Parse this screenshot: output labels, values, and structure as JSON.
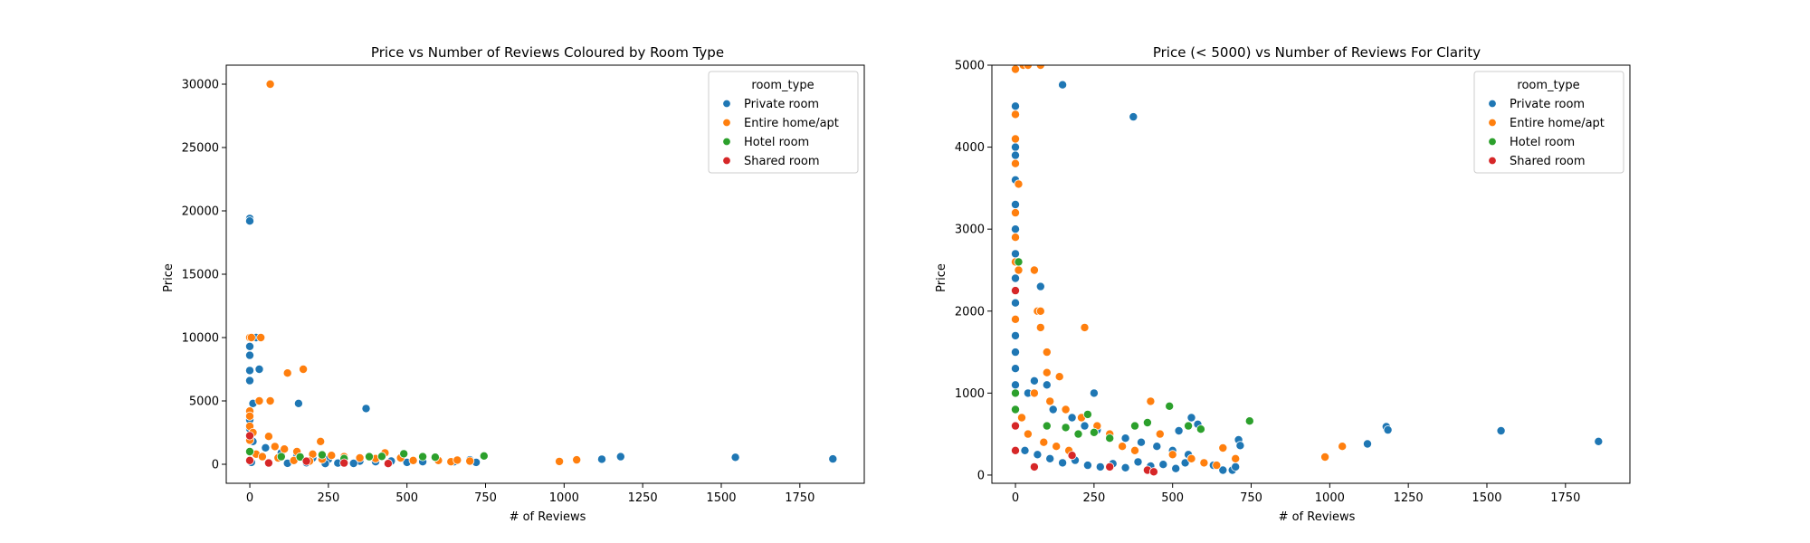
{
  "chart_data": [
    {
      "type": "scatter",
      "title": "Price vs Number of Reviews Coloured by Room Type",
      "xlabel": "# of Reviews",
      "ylabel": "Price",
      "xlim": [
        -75,
        1955
      ],
      "ylim": [
        -1500,
        31500
      ],
      "xticks": [
        0,
        250,
        500,
        750,
        1000,
        1250,
        1500,
        1750
      ],
      "yticks": [
        0,
        5000,
        10000,
        15000,
        20000,
        25000,
        30000
      ],
      "legend": {
        "title": "room_type",
        "position": "top-right"
      },
      "series": [
        {
          "name": "Private room",
          "color": "#1f77b4",
          "points": [
            [
              0,
              19400
            ],
            [
              0,
              19200
            ],
            [
              0,
              10000
            ],
            [
              20,
              10000
            ],
            [
              0,
              9300
            ],
            [
              0,
              8600
            ],
            [
              0,
              7400
            ],
            [
              30,
              7500
            ],
            [
              0,
              6600
            ],
            [
              10,
              4800
            ],
            [
              155,
              4800
            ],
            [
              370,
              4400
            ],
            [
              0,
              3500
            ],
            [
              0,
              2800
            ],
            [
              0,
              2000
            ],
            [
              10,
              1800
            ],
            [
              50,
              1300
            ],
            [
              100,
              900
            ],
            [
              150,
              700
            ],
            [
              200,
              500
            ],
            [
              250,
              400
            ],
            [
              300,
              300
            ],
            [
              350,
              250
            ],
            [
              400,
              200
            ],
            [
              450,
              250
            ],
            [
              500,
              150
            ],
            [
              550,
              200
            ],
            [
              600,
              300
            ],
            [
              650,
              200
            ],
            [
              700,
              350
            ],
            [
              720,
              150
            ],
            [
              1120,
              400
            ],
            [
              1180,
              600
            ],
            [
              1545,
              550
            ],
            [
              1855,
              420
            ],
            [
              5,
              150
            ],
            [
              60,
              100
            ],
            [
              120,
              80
            ],
            [
              180,
              120
            ],
            [
              240,
              60
            ],
            [
              280,
              90
            ],
            [
              330,
              70
            ]
          ]
        },
        {
          "name": "Entire home/apt",
          "color": "#ff7f0e",
          "points": [
            [
              65,
              30000
            ],
            [
              0,
              10000
            ],
            [
              5,
              10000
            ],
            [
              35,
              10000
            ],
            [
              120,
              7200
            ],
            [
              170,
              7500
            ],
            [
              30,
              5000
            ],
            [
              65,
              5000
            ],
            [
              0,
              4200
            ],
            [
              0,
              3800
            ],
            [
              0,
              3000
            ],
            [
              10,
              2500
            ],
            [
              60,
              2200
            ],
            [
              0,
              1900
            ],
            [
              225,
              1800
            ],
            [
              80,
              1400
            ],
            [
              110,
              1200
            ],
            [
              150,
              1000
            ],
            [
              200,
              800
            ],
            [
              260,
              700
            ],
            [
              300,
              600
            ],
            [
              350,
              500
            ],
            [
              400,
              450
            ],
            [
              430,
              900
            ],
            [
              480,
              500
            ],
            [
              520,
              300
            ],
            [
              600,
              300
            ],
            [
              640,
              200
            ],
            [
              660,
              330
            ],
            [
              700,
              250
            ],
            [
              985,
              220
            ],
            [
              1040,
              350
            ],
            [
              20,
              800
            ],
            [
              40,
              600
            ],
            [
              90,
              500
            ],
            [
              140,
              300
            ],
            [
              190,
              250
            ],
            [
              230,
              400
            ]
          ]
        },
        {
          "name": "Hotel room",
          "color": "#2ca02c",
          "points": [
            [
              0,
              1000
            ],
            [
              230,
              740
            ],
            [
              300,
              450
            ],
            [
              380,
              600
            ],
            [
              420,
              620
            ],
            [
              490,
              830
            ],
            [
              550,
              600
            ],
            [
              590,
              560
            ],
            [
              745,
              660
            ],
            [
              100,
              600
            ],
            [
              160,
              580
            ]
          ]
        },
        {
          "name": "Shared room",
          "color": "#d62728",
          "points": [
            [
              0,
              2250
            ],
            [
              0,
              300
            ],
            [
              60,
              100
            ],
            [
              180,
              240
            ],
            [
              300,
              100
            ],
            [
              440,
              60
            ]
          ]
        }
      ]
    },
    {
      "type": "scatter",
      "title": "Price (< 5000) vs Number of Reviews For Clarity",
      "xlabel": "# of Reviews",
      "ylabel": "Price",
      "xlim": [
        -75,
        1955
      ],
      "ylim": [
        -100,
        5000
      ],
      "xticks": [
        0,
        250,
        500,
        750,
        1000,
        1250,
        1500,
        1750
      ],
      "yticks": [
        0,
        1000,
        2000,
        3000,
        4000,
        5000
      ],
      "legend": {
        "title": "room_type",
        "position": "top-right"
      },
      "series": [
        {
          "name": "Private room",
          "color": "#1f77b4",
          "points": [
            [
              0,
              4500
            ],
            [
              150,
              4760
            ],
            [
              375,
              4370
            ],
            [
              0,
              4000
            ],
            [
              0,
              3900
            ],
            [
              0,
              3600
            ],
            [
              0,
              3300
            ],
            [
              0,
              3000
            ],
            [
              0,
              2700
            ],
            [
              0,
              2400
            ],
            [
              80,
              2300
            ],
            [
              0,
              2100
            ],
            [
              0,
              1900
            ],
            [
              0,
              1700
            ],
            [
              0,
              1500
            ],
            [
              0,
              1300
            ],
            [
              0,
              1100
            ],
            [
              40,
              1000
            ],
            [
              60,
              1150
            ],
            [
              100,
              1100
            ],
            [
              250,
              1000
            ],
            [
              120,
              800
            ],
            [
              180,
              700
            ],
            [
              220,
              600
            ],
            [
              260,
              550
            ],
            [
              300,
              500
            ],
            [
              350,
              450
            ],
            [
              400,
              400
            ],
            [
              450,
              350
            ],
            [
              500,
              300
            ],
            [
              550,
              250
            ],
            [
              560,
              700
            ],
            [
              580,
              620
            ],
            [
              630,
              120
            ],
            [
              660,
              60
            ],
            [
              690,
              60
            ],
            [
              700,
              100
            ],
            [
              710,
              430
            ],
            [
              715,
              360
            ],
            [
              1120,
              380
            ],
            [
              1180,
              590
            ],
            [
              1185,
              550
            ],
            [
              1545,
              540
            ],
            [
              1855,
              410
            ],
            [
              30,
              300
            ],
            [
              70,
              250
            ],
            [
              110,
              200
            ],
            [
              150,
              150
            ],
            [
              190,
              180
            ],
            [
              230,
              120
            ],
            [
              270,
              100
            ],
            [
              310,
              140
            ],
            [
              350,
              90
            ],
            [
              390,
              160
            ],
            [
              430,
              110
            ],
            [
              470,
              130
            ],
            [
              510,
              80
            ],
            [
              540,
              150
            ],
            [
              520,
              540
            ]
          ]
        },
        {
          "name": "Entire home/apt",
          "color": "#ff7f0e",
          "points": [
            [
              0,
              4950
            ],
            [
              25,
              5000
            ],
            [
              40,
              5000
            ],
            [
              80,
              5000
            ],
            [
              0,
              4400
            ],
            [
              0,
              4100
            ],
            [
              0,
              3800
            ],
            [
              10,
              3550
            ],
            [
              0,
              3200
            ],
            [
              0,
              2900
            ],
            [
              0,
              2600
            ],
            [
              10,
              2500
            ],
            [
              60,
              2500
            ],
            [
              70,
              2000
            ],
            [
              80,
              2000
            ],
            [
              0,
              1900
            ],
            [
              80,
              1800
            ],
            [
              220,
              1800
            ],
            [
              100,
              1500
            ],
            [
              100,
              1250
            ],
            [
              140,
              1200
            ],
            [
              60,
              1000
            ],
            [
              110,
              900
            ],
            [
              160,
              800
            ],
            [
              210,
              700
            ],
            [
              260,
              600
            ],
            [
              300,
              500
            ],
            [
              340,
              350
            ],
            [
              380,
              300
            ],
            [
              430,
              900
            ],
            [
              460,
              500
            ],
            [
              500,
              250
            ],
            [
              560,
              200
            ],
            [
              600,
              150
            ],
            [
              640,
              120
            ],
            [
              660,
              330
            ],
            [
              700,
              200
            ],
            [
              985,
              220
            ],
            [
              1040,
              350
            ],
            [
              20,
              700
            ],
            [
              40,
              500
            ],
            [
              90,
              400
            ],
            [
              130,
              350
            ],
            [
              170,
              300
            ]
          ]
        },
        {
          "name": "Hotel room",
          "color": "#2ca02c",
          "points": [
            [
              0,
              1000
            ],
            [
              0,
              800
            ],
            [
              10,
              2600
            ],
            [
              230,
              740
            ],
            [
              250,
              520
            ],
            [
              300,
              450
            ],
            [
              380,
              600
            ],
            [
              420,
              640
            ],
            [
              490,
              840
            ],
            [
              550,
              600
            ],
            [
              590,
              560
            ],
            [
              745,
              660
            ],
            [
              100,
              600
            ],
            [
              160,
              580
            ],
            [
              200,
              500
            ]
          ]
        },
        {
          "name": "Shared room",
          "color": "#d62728",
          "points": [
            [
              0,
              2250
            ],
            [
              0,
              600
            ],
            [
              0,
              300
            ],
            [
              60,
              100
            ],
            [
              180,
              240
            ],
            [
              300,
              100
            ],
            [
              420,
              60
            ],
            [
              440,
              40
            ]
          ]
        }
      ]
    }
  ]
}
